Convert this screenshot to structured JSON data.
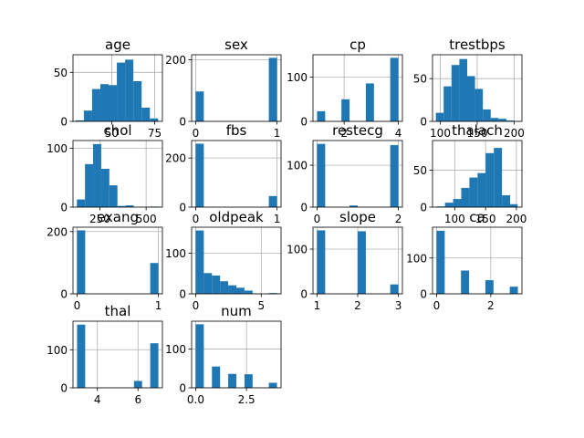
{
  "chart_data": [
    {
      "type": "bar",
      "title": "age",
      "xlim": [
        27.5,
        79.5
      ],
      "ylim": [
        0,
        68
      ],
      "xticks": [
        50,
        75
      ],
      "yticks": [
        0,
        50
      ],
      "grid": true,
      "bins": [
        [
          29,
          33.8
        ],
        [
          33.8,
          38.6
        ],
        [
          38.6,
          43.4
        ],
        [
          43.4,
          48.2
        ],
        [
          48.2,
          53
        ],
        [
          53,
          57.8
        ],
        [
          57.8,
          62.6
        ],
        [
          62.6,
          67.4
        ],
        [
          67.4,
          72.2
        ],
        [
          72.2,
          77
        ]
      ],
      "values": [
        1,
        11,
        33,
        38,
        37,
        60,
        63,
        41,
        14,
        3
      ]
    },
    {
      "type": "bar",
      "title": "sex",
      "xlim": [
        -0.05,
        1.05
      ],
      "ylim": [
        0,
        216
      ],
      "xticks": [
        0,
        1
      ],
      "yticks": [
        0,
        200
      ],
      "grid": true,
      "bins": [
        [
          0,
          0.1
        ],
        [
          0.9,
          1
        ]
      ],
      "values": [
        97,
        206
      ]
    },
    {
      "type": "bar",
      "title": "cp",
      "xlim": [
        0.85,
        4.15
      ],
      "ylim": [
        0,
        151
      ],
      "xticks": [
        2,
        4
      ],
      "yticks": [
        0,
        100
      ],
      "grid": true,
      "bins": [
        [
          1,
          1.3
        ],
        [
          1.9,
          2.2
        ],
        [
          2.8,
          3.1
        ],
        [
          3.7,
          4
        ]
      ],
      "values": [
        23,
        50,
        86,
        144
      ]
    },
    {
      "type": "bar",
      "title": "trestbps",
      "xlim": [
        89.5,
        210.5
      ],
      "ylim": [
        0,
        78
      ],
      "xticks": [
        100,
        150,
        200
      ],
      "yticks": [
        0,
        50
      ],
      "grid": true,
      "bins": [
        [
          94,
          104.6
        ],
        [
          104.6,
          115.2
        ],
        [
          115.2,
          125.8
        ],
        [
          125.8,
          136.4
        ],
        [
          136.4,
          147
        ],
        [
          147,
          157.6
        ],
        [
          157.6,
          168.2
        ],
        [
          168.2,
          178.8
        ],
        [
          178.8,
          189.4
        ],
        [
          189.4,
          200
        ]
      ],
      "values": [
        10,
        41,
        66,
        73,
        53,
        38,
        14,
        4,
        3,
        1
      ]
    },
    {
      "type": "bar",
      "title": "chol",
      "xlim": [
        105,
        588
      ],
      "ylim": [
        0,
        113
      ],
      "xticks": [
        250,
        500
      ],
      "yticks": [
        0,
        100
      ],
      "grid": true,
      "bins": [
        [
          126,
          169.8
        ],
        [
          169.8,
          213.6
        ],
        [
          213.6,
          257.4
        ],
        [
          257.4,
          301.2
        ],
        [
          301.2,
          345
        ],
        [
          345,
          388.8
        ],
        [
          388.8,
          432.6
        ],
        [
          432.6,
          476.4
        ],
        [
          476.4,
          520.2
        ],
        [
          520.2,
          564
        ]
      ],
      "values": [
        13,
        73,
        107,
        65,
        37,
        2,
        3,
        0,
        0,
        1
      ]
    },
    {
      "type": "bar",
      "title": "fbs",
      "xlim": [
        -0.05,
        1.05
      ],
      "ylim": [
        0,
        271
      ],
      "xticks": [
        0,
        1
      ],
      "yticks": [
        0,
        200
      ],
      "grid": true,
      "bins": [
        [
          0,
          0.1
        ],
        [
          0.9,
          1
        ]
      ],
      "values": [
        258,
        45
      ]
    },
    {
      "type": "bar",
      "title": "restecg",
      "xlim": [
        -0.1,
        2.1
      ],
      "ylim": [
        0,
        159
      ],
      "xticks": [
        0,
        2
      ],
      "yticks": [
        0,
        100
      ],
      "grid": true,
      "bins": [
        [
          0,
          0.2
        ],
        [
          0.8,
          1
        ],
        [
          1.8,
          2
        ]
      ],
      "values": [
        151,
        4,
        148
      ]
    },
    {
      "type": "bar",
      "title": "thalach",
      "xlim": [
        64,
        209
      ],
      "ylim": [
        0,
        90
      ],
      "xticks": [
        100,
        150,
        200
      ],
      "yticks": [
        0,
        50
      ],
      "grid": true,
      "bins": [
        [
          71,
          84.2
        ],
        [
          84.2,
          97.4
        ],
        [
          97.4,
          110.6
        ],
        [
          110.6,
          123.8
        ],
        [
          123.8,
          137
        ],
        [
          137,
          150.2
        ],
        [
          150.2,
          163.4
        ],
        [
          163.4,
          176.6
        ],
        [
          176.6,
          189.8
        ],
        [
          189.8,
          202
        ]
      ],
      "values": [
        1,
        6,
        11,
        26,
        40,
        46,
        73,
        80,
        16,
        4
      ]
    },
    {
      "type": "bar",
      "title": "exang",
      "xlim": [
        -0.05,
        1.05
      ],
      "ylim": [
        0,
        214
      ],
      "xticks": [
        0,
        1
      ],
      "yticks": [
        0,
        200
      ],
      "grid": true,
      "bins": [
        [
          0,
          0.1
        ],
        [
          0.9,
          1
        ]
      ],
      "values": [
        204,
        99
      ]
    },
    {
      "type": "bar",
      "title": "oldpeak",
      "xlim": [
        -0.31,
        6.51
      ],
      "ylim": [
        0,
        164
      ],
      "xticks": [
        0,
        5
      ],
      "yticks": [
        0,
        100
      ],
      "grid": true,
      "bins": [
        [
          0,
          0.62
        ],
        [
          0.62,
          1.24
        ],
        [
          1.24,
          1.86
        ],
        [
          1.86,
          2.48
        ],
        [
          2.48,
          3.1
        ],
        [
          3.1,
          3.72
        ],
        [
          3.72,
          4.34
        ],
        [
          4.34,
          4.96
        ],
        [
          4.96,
          5.58
        ],
        [
          5.58,
          6.2
        ]
      ],
      "values": [
        156,
        51,
        45,
        31,
        21,
        15,
        8,
        1,
        0,
        2
      ]
    },
    {
      "type": "bar",
      "title": "slope",
      "xlim": [
        0.9,
        3.1
      ],
      "ylim": [
        0,
        149
      ],
      "xticks": [
        1,
        2,
        3
      ],
      "yticks": [
        0,
        100
      ],
      "grid": true,
      "bins": [
        [
          1,
          1.2
        ],
        [
          2,
          2.2
        ],
        [
          2.8,
          3
        ]
      ],
      "values": [
        142,
        140,
        21
      ]
    },
    {
      "type": "bar",
      "title": "ca",
      "xlim": [
        -0.15,
        3.15
      ],
      "ylim": [
        0,
        186
      ],
      "xticks": [
        0,
        2
      ],
      "yticks": [
        0,
        100
      ],
      "grid": true,
      "bins": [
        [
          0,
          0.3
        ],
        [
          0.9,
          1.2
        ],
        [
          1.8,
          2.1
        ],
        [
          2.7,
          3
        ]
      ],
      "values": [
        176,
        65,
        38,
        20
      ]
    },
    {
      "type": "bar",
      "title": "thal",
      "xlim": [
        2.8,
        7.2
      ],
      "ylim": [
        0,
        175
      ],
      "xticks": [
        4,
        6
      ],
      "yticks": [
        0,
        100
      ],
      "grid": true,
      "bins": [
        [
          3,
          3.4
        ],
        [
          5.8,
          6.2
        ],
        [
          6.6,
          7
        ]
      ],
      "values": [
        166,
        18,
        117
      ]
    },
    {
      "type": "bar",
      "title": "num",
      "xlim": [
        -0.2,
        4.2
      ],
      "ylim": [
        0,
        172
      ],
      "xticks": [
        0.0,
        2.5
      ],
      "xtick_labels": [
        "0.0",
        "2.5"
      ],
      "yticks": [
        0,
        100
      ],
      "grid": true,
      "bins": [
        [
          0,
          0.4
        ],
        [
          0.8,
          1.2
        ],
        [
          1.6,
          2
        ],
        [
          2.4,
          2.8
        ],
        [
          3.6,
          4
        ]
      ],
      "values": [
        164,
        55,
        36,
        35,
        13
      ]
    }
  ],
  "colors": {
    "bar": "#1f77b4",
    "grid": "#b0b0b0",
    "axes": "#000000"
  }
}
